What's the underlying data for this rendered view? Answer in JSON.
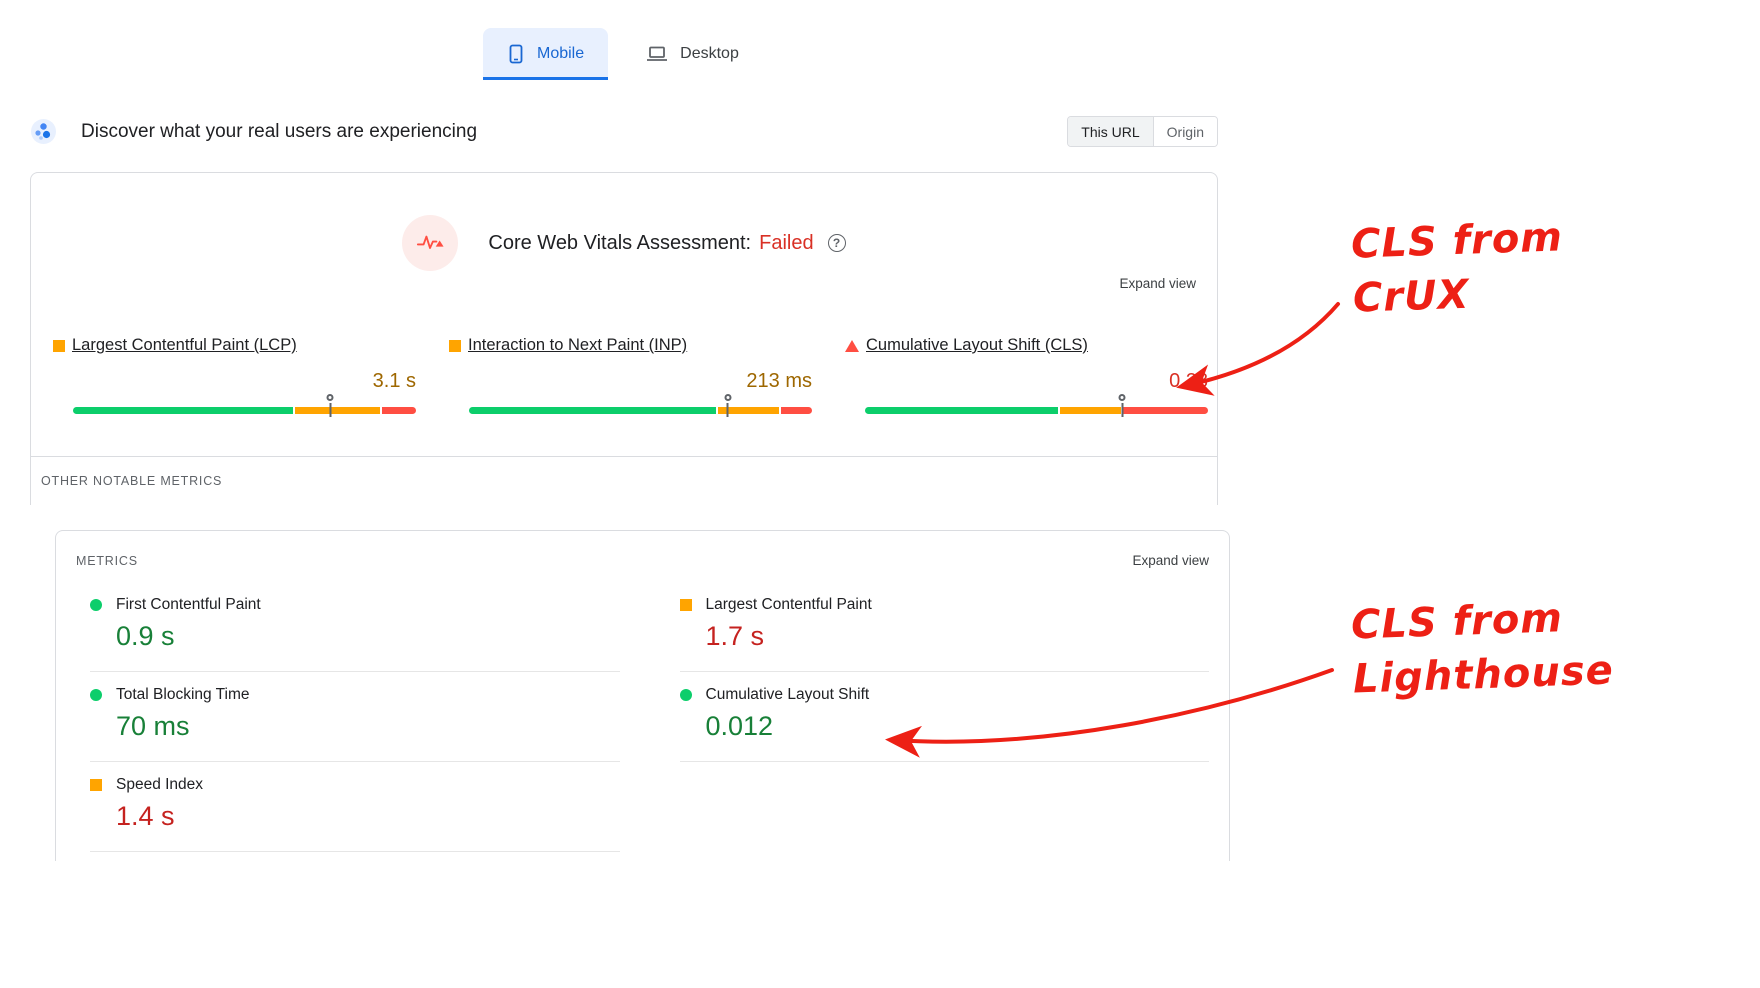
{
  "tabs": {
    "mobile": "Mobile",
    "desktop": "Desktop"
  },
  "field": {
    "title": "Discover what your real users are experiencing",
    "scope_toggle": {
      "this_url": "This URL",
      "origin": "Origin"
    },
    "assessment_label": "Core Web Vitals Assessment:",
    "assessment_value": "Failed",
    "assessment_value_color": "#d93025",
    "help_icon": "?",
    "expand_view": "Expand view",
    "metrics": [
      {
        "name": "Largest Contentful Paint (LCP)",
        "value": "3.1 s",
        "status": "needs-improvement",
        "value_color": "#9e6700",
        "icon": "orange-square",
        "bar": {
          "good_pct": 65,
          "ni_pct": 25,
          "poor_pct": 10,
          "marker_pct": 75
        }
      },
      {
        "name": "Interaction to Next Paint (INP)",
        "value": "213 ms",
        "status": "needs-improvement",
        "value_color": "#9e6700",
        "icon": "orange-square",
        "bar": {
          "good_pct": 73,
          "ni_pct": 18,
          "poor_pct": 9,
          "marker_pct": 75.5
        }
      },
      {
        "name": "Cumulative Layout Shift (CLS)",
        "value": "0.28",
        "status": "poor",
        "value_color": "#d93025",
        "icon": "red-triangle",
        "bar": {
          "good_pct": 57,
          "ni_pct": 18,
          "poor_pct": 25,
          "marker_pct": 75
        }
      }
    ],
    "other_metrics_label": "OTHER NOTABLE METRICS"
  },
  "lab": {
    "metrics_label": "METRICS",
    "expand_view": "Expand view",
    "columns": {
      "left": [
        {
          "name": "First Contentful Paint",
          "value": "0.9 s",
          "icon": "green-circle",
          "value_color": "#188038"
        },
        {
          "name": "Total Blocking Time",
          "value": "70 ms",
          "icon": "green-circle",
          "value_color": "#188038"
        },
        {
          "name": "Speed Index",
          "value": "1.4 s",
          "icon": "orange-square",
          "value_color": "#c5221f"
        }
      ],
      "right": [
        {
          "name": "Largest Contentful Paint",
          "value": "1.7 s",
          "icon": "orange-square",
          "value_color": "#c5221f"
        },
        {
          "name": "Cumulative Layout Shift",
          "value": "0.012",
          "icon": "green-circle",
          "value_color": "#188038"
        }
      ]
    }
  },
  "annotations": {
    "color": "#ed2015",
    "crux": {
      "line1": "CLS from",
      "line2": "CrUX"
    },
    "lighthouse": {
      "line1": "CLS from",
      "line2": "Lighthouse"
    }
  },
  "colors": {
    "good": "#0cce6b",
    "needs_improvement": "#ffa400",
    "poor": "#ff4e42",
    "accent_blue": "#1a73e8",
    "tab_bg": "#e8f0fe"
  }
}
